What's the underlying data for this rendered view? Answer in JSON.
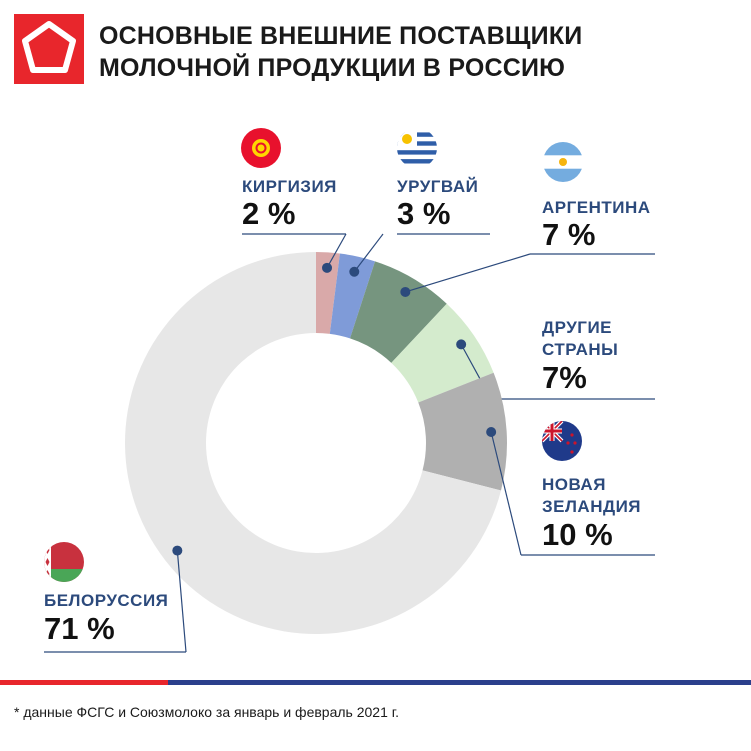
{
  "header": {
    "title_line1": "ОСНОВНЫЕ ВНЕШНИЕ ПОСТАВЩИКИ",
    "title_line2": "МОЛОЧНОЙ ПРОДУКЦИИ В РОССИЮ"
  },
  "chart_data": {
    "type": "pie",
    "donut": true,
    "slices": [
      {
        "label": "КИРГИЗИЯ",
        "value_label": "2 %",
        "value": 2,
        "color": "#d9a9a9",
        "flag": "kyrgyzstan-flag-icon"
      },
      {
        "label": "УРУГВАЙ",
        "value_label": "3 %",
        "value": 3,
        "color": "#7f9bd8",
        "flag": "uruguay-flag-icon"
      },
      {
        "label": "АРГЕНТИНА",
        "value_label": "7 %",
        "value": 7,
        "color": "#76957f",
        "flag": "argentina-flag-icon"
      },
      {
        "label_line1": "ДРУГИЕ",
        "label_line2": "СТРАНЫ",
        "value_label": "7%",
        "value": 7,
        "color": "#d4ebcd"
      },
      {
        "label_line1": "НОВАЯ",
        "label_line2": "ЗЕЛАНДИЯ",
        "value_label": "10 %",
        "value": 10,
        "color": "#b0b0b0",
        "flag": "new-zealand-flag-icon"
      },
      {
        "label": "БЕЛОРУССИЯ",
        "value_label": "71 %",
        "value": 71,
        "color": "#e7e7e7",
        "flag": "belarus-flag-icon"
      }
    ],
    "marker_color": "#2c4a7c"
  },
  "colors": {
    "brand_red": "#e8262c",
    "brand_blue": "#2b3f8c",
    "label_blue": "#2c4a7c"
  },
  "footer": {
    "note": "* данные ФСГС и Союзмолоко за январь и февраль 2021 г."
  }
}
